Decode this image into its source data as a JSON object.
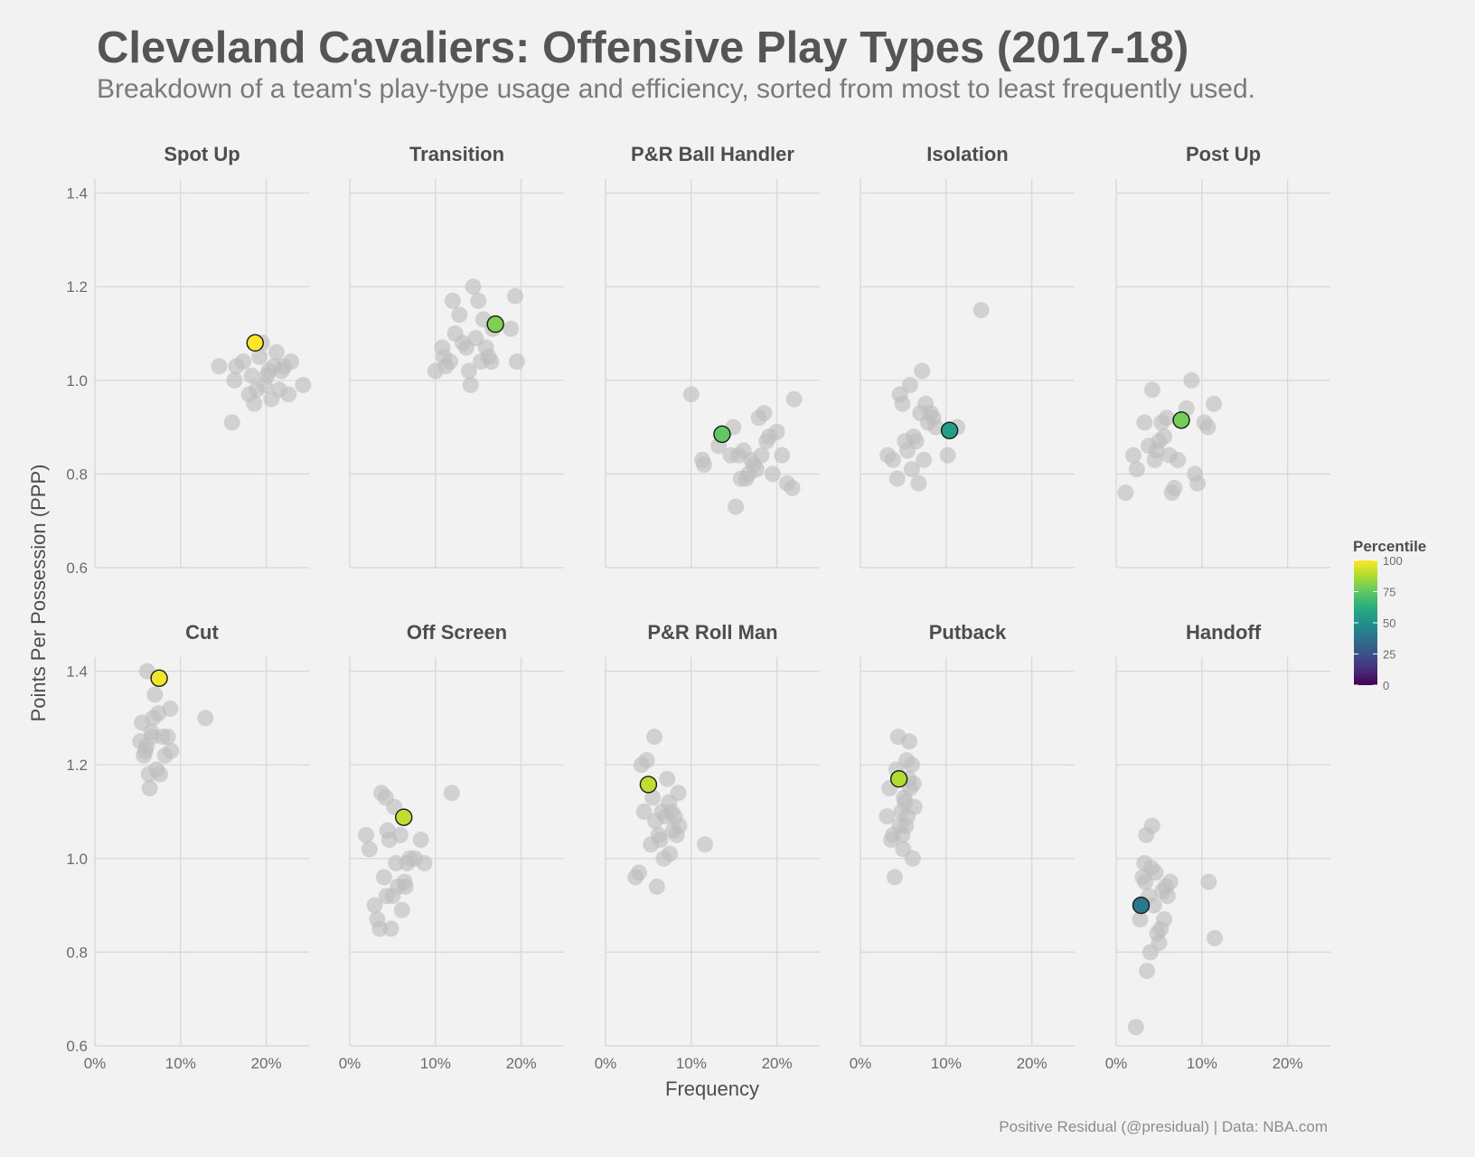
{
  "title": "Cleveland Cavaliers: Offensive Play Types (2017-18)",
  "subtitle": "Breakdown of a team's play-type usage and efficiency, sorted from most to least frequently used.",
  "caption": "Positive Residual (@presidual)  |  Data: NBA.com",
  "colors": {
    "background": "#f2f2f2",
    "grid": "#d9d9d9",
    "others": "#bdbdbd",
    "highlight_stroke": "#1a1a1a"
  },
  "chart_data": {
    "type": "scatter",
    "xlabel": "Frequency",
    "ylabel": "Points Per Possession (PPP)",
    "xlim": [
      0,
      25
    ],
    "ylim": [
      0.6,
      1.43
    ],
    "x_ticks": [
      0,
      10,
      20
    ],
    "x_tick_labels": [
      "0%",
      "10%",
      "20%"
    ],
    "y_ticks": [
      0.6,
      0.8,
      1.0,
      1.2,
      1.4
    ],
    "y_tick_labels": [
      "0.6",
      "0.8",
      "1.0",
      "1.2",
      "1.4"
    ],
    "legend": {
      "title": "Percentile",
      "position": "right",
      "ticks": [
        0,
        25,
        50,
        75,
        100
      ],
      "colormap": "viridis"
    },
    "panels": [
      {
        "name": "Spot Up",
        "team": {
          "x": 18.7,
          "y": 1.08,
          "percentile": 100
        },
        "others": [
          [
            14.5,
            1.03
          ],
          [
            16.0,
            0.91
          ],
          [
            16.3,
            1.0
          ],
          [
            16.5,
            1.03
          ],
          [
            17.3,
            1.04
          ],
          [
            18.0,
            0.97
          ],
          [
            18.3,
            1.01
          ],
          [
            18.6,
            0.95
          ],
          [
            18.9,
            0.98
          ],
          [
            19.2,
            1.05
          ],
          [
            19.5,
            1.08
          ],
          [
            19.8,
            0.99
          ],
          [
            20.1,
            1.01
          ],
          [
            20.3,
            1.02
          ],
          [
            20.6,
            0.96
          ],
          [
            20.9,
            1.03
          ],
          [
            21.2,
            1.06
          ],
          [
            21.5,
            0.98
          ],
          [
            21.8,
            1.02
          ],
          [
            22.1,
            1.03
          ],
          [
            22.6,
            0.97
          ],
          [
            22.9,
            1.04
          ],
          [
            24.3,
            0.99
          ]
        ]
      },
      {
        "name": "Transition",
        "team": {
          "x": 17.0,
          "y": 1.12,
          "percentile": 80
        },
        "others": [
          [
            10.0,
            1.02
          ],
          [
            10.8,
            1.07
          ],
          [
            11.0,
            1.05
          ],
          [
            11.2,
            1.03
          ],
          [
            11.7,
            1.04
          ],
          [
            12.0,
            1.17
          ],
          [
            12.3,
            1.1
          ],
          [
            12.8,
            1.14
          ],
          [
            13.2,
            1.08
          ],
          [
            13.6,
            1.07
          ],
          [
            13.9,
            1.02
          ],
          [
            14.1,
            0.99
          ],
          [
            14.4,
            1.2
          ],
          [
            14.7,
            1.09
          ],
          [
            15.0,
            1.17
          ],
          [
            15.3,
            1.04
          ],
          [
            15.6,
            1.13
          ],
          [
            15.9,
            1.07
          ],
          [
            16.2,
            1.05
          ],
          [
            16.5,
            1.04
          ],
          [
            16.7,
            1.11
          ],
          [
            18.8,
            1.11
          ],
          [
            19.3,
            1.18
          ],
          [
            19.5,
            1.04
          ]
        ]
      },
      {
        "name": "P&R Ball Handler",
        "team": {
          "x": 13.6,
          "y": 0.885,
          "percentile": 75
        },
        "others": [
          [
            10.0,
            0.97
          ],
          [
            11.3,
            0.83
          ],
          [
            11.5,
            0.82
          ],
          [
            13.2,
            0.86
          ],
          [
            14.6,
            0.84
          ],
          [
            14.9,
            0.9
          ],
          [
            15.2,
            0.73
          ],
          [
            15.5,
            0.84
          ],
          [
            15.8,
            0.79
          ],
          [
            16.1,
            0.85
          ],
          [
            16.4,
            0.79
          ],
          [
            16.7,
            0.8
          ],
          [
            17.0,
            0.83
          ],
          [
            17.3,
            0.82
          ],
          [
            17.6,
            0.81
          ],
          [
            17.9,
            0.92
          ],
          [
            18.2,
            0.84
          ],
          [
            18.5,
            0.93
          ],
          [
            18.8,
            0.87
          ],
          [
            19.1,
            0.88
          ],
          [
            19.5,
            0.8
          ],
          [
            20.0,
            0.89
          ],
          [
            20.6,
            0.84
          ],
          [
            21.2,
            0.78
          ],
          [
            21.8,
            0.77
          ],
          [
            22.0,
            0.96
          ]
        ]
      },
      {
        "name": "Isolation",
        "team": {
          "x": 10.4,
          "y": 0.893,
          "percentile": 55
        },
        "others": [
          [
            3.2,
            0.84
          ],
          [
            3.8,
            0.83
          ],
          [
            4.3,
            0.79
          ],
          [
            4.6,
            0.97
          ],
          [
            4.9,
            0.95
          ],
          [
            5.2,
            0.87
          ],
          [
            5.5,
            0.85
          ],
          [
            5.8,
            0.99
          ],
          [
            6.0,
            0.81
          ],
          [
            6.2,
            0.88
          ],
          [
            6.5,
            0.87
          ],
          [
            6.8,
            0.78
          ],
          [
            7.0,
            0.93
          ],
          [
            7.2,
            1.02
          ],
          [
            7.4,
            0.83
          ],
          [
            7.6,
            0.95
          ],
          [
            7.9,
            0.91
          ],
          [
            8.2,
            0.93
          ],
          [
            8.5,
            0.92
          ],
          [
            8.8,
            0.9
          ],
          [
            10.2,
            0.84
          ],
          [
            11.3,
            0.9
          ],
          [
            14.1,
            1.15
          ]
        ]
      },
      {
        "name": "Post Up",
        "team": {
          "x": 7.6,
          "y": 0.915,
          "percentile": 78
        },
        "others": [
          [
            1.1,
            0.76
          ],
          [
            2.0,
            0.84
          ],
          [
            2.4,
            0.81
          ],
          [
            3.3,
            0.91
          ],
          [
            3.8,
            0.86
          ],
          [
            4.2,
            0.98
          ],
          [
            4.5,
            0.83
          ],
          [
            4.7,
            0.85
          ],
          [
            5.0,
            0.87
          ],
          [
            5.3,
            0.91
          ],
          [
            5.6,
            0.88
          ],
          [
            5.9,
            0.92
          ],
          [
            6.2,
            0.84
          ],
          [
            6.5,
            0.76
          ],
          [
            6.8,
            0.77
          ],
          [
            7.2,
            0.83
          ],
          [
            8.2,
            0.94
          ],
          [
            8.8,
            1.0
          ],
          [
            9.2,
            0.8
          ],
          [
            9.5,
            0.78
          ],
          [
            10.3,
            0.91
          ],
          [
            10.7,
            0.9
          ],
          [
            11.4,
            0.95
          ]
        ]
      },
      {
        "name": "Cut",
        "team": {
          "x": 7.5,
          "y": 1.385,
          "percentile": 98
        },
        "others": [
          [
            5.3,
            1.25
          ],
          [
            5.5,
            1.29
          ],
          [
            5.7,
            1.22
          ],
          [
            5.9,
            1.23
          ],
          [
            6.1,
            1.4
          ],
          [
            6.3,
            1.18
          ],
          [
            6.4,
            1.15
          ],
          [
            6.6,
            1.27
          ],
          [
            6.8,
            1.3
          ],
          [
            7.0,
            1.35
          ],
          [
            7.2,
            1.19
          ],
          [
            7.4,
            1.31
          ],
          [
            7.6,
            1.18
          ],
          [
            7.9,
            1.26
          ],
          [
            8.2,
            1.22
          ],
          [
            8.5,
            1.26
          ],
          [
            8.8,
            1.32
          ],
          [
            8.9,
            1.23
          ],
          [
            12.9,
            1.3
          ],
          [
            6.0,
            1.24
          ],
          [
            6.7,
            1.26
          ]
        ]
      },
      {
        "name": "Off Screen",
        "team": {
          "x": 6.3,
          "y": 1.088,
          "percentile": 90
        },
        "others": [
          [
            1.9,
            1.05
          ],
          [
            2.3,
            1.02
          ],
          [
            2.9,
            0.9
          ],
          [
            3.2,
            0.87
          ],
          [
            3.5,
            0.85
          ],
          [
            3.7,
            1.14
          ],
          [
            4.0,
            0.96
          ],
          [
            4.2,
            1.13
          ],
          [
            4.4,
            1.06
          ],
          [
            4.6,
            1.04
          ],
          [
            4.8,
            0.85
          ],
          [
            5.0,
            0.92
          ],
          [
            5.2,
            1.11
          ],
          [
            5.4,
            0.99
          ],
          [
            5.6,
            0.94
          ],
          [
            5.9,
            1.05
          ],
          [
            6.1,
            0.89
          ],
          [
            6.4,
            0.95
          ],
          [
            6.7,
            0.99
          ],
          [
            7.0,
            1.0
          ],
          [
            7.6,
            1.0
          ],
          [
            8.3,
            1.04
          ],
          [
            8.7,
            0.99
          ],
          [
            11.9,
            1.14
          ],
          [
            4.3,
            0.92
          ],
          [
            6.5,
            0.94
          ]
        ]
      },
      {
        "name": "P&R Roll Man",
        "team": {
          "x": 5.0,
          "y": 1.158,
          "percentile": 90
        },
        "others": [
          [
            3.5,
            0.96
          ],
          [
            3.9,
            0.97
          ],
          [
            4.2,
            1.2
          ],
          [
            4.5,
            1.1
          ],
          [
            4.8,
            1.21
          ],
          [
            5.3,
            1.03
          ],
          [
            5.5,
            1.13
          ],
          [
            5.7,
            1.26
          ],
          [
            5.8,
            1.08
          ],
          [
            6.0,
            0.94
          ],
          [
            6.2,
            1.05
          ],
          [
            6.4,
            1.04
          ],
          [
            6.6,
            1.1
          ],
          [
            6.8,
            1.0
          ],
          [
            7.0,
            1.09
          ],
          [
            7.2,
            1.17
          ],
          [
            7.4,
            1.12
          ],
          [
            7.5,
            1.01
          ],
          [
            7.7,
            1.1
          ],
          [
            7.9,
            1.06
          ],
          [
            8.1,
            1.09
          ],
          [
            8.3,
            1.05
          ],
          [
            8.5,
            1.14
          ],
          [
            8.6,
            1.07
          ],
          [
            11.6,
            1.03
          ]
        ]
      },
      {
        "name": "Putback",
        "team": {
          "x": 4.5,
          "y": 1.17,
          "percentile": 88
        },
        "others": [
          [
            3.1,
            1.09
          ],
          [
            3.4,
            1.15
          ],
          [
            3.6,
            1.04
          ],
          [
            3.8,
            1.05
          ],
          [
            4.0,
            0.96
          ],
          [
            4.2,
            1.19
          ],
          [
            4.4,
            1.26
          ],
          [
            4.6,
            1.07
          ],
          [
            4.8,
            1.1
          ],
          [
            5.0,
            1.02
          ],
          [
            5.1,
            1.13
          ],
          [
            5.2,
            1.12
          ],
          [
            5.4,
            1.21
          ],
          [
            5.5,
            1.09
          ],
          [
            5.6,
            1.17
          ],
          [
            5.7,
            1.25
          ],
          [
            5.8,
            1.15
          ],
          [
            6.0,
            1.2
          ],
          [
            6.1,
            1.0
          ],
          [
            6.2,
            1.16
          ],
          [
            6.3,
            1.11
          ],
          [
            4.9,
            1.05
          ],
          [
            5.3,
            1.07
          ]
        ]
      },
      {
        "name": "Handoff",
        "team": {
          "x": 2.9,
          "y": 0.9,
          "percentile": 40
        },
        "others": [
          [
            2.3,
            0.64
          ],
          [
            2.8,
            0.87
          ],
          [
            3.1,
            0.96
          ],
          [
            3.3,
            0.99
          ],
          [
            3.5,
            1.05
          ],
          [
            3.6,
            0.76
          ],
          [
            3.8,
            0.92
          ],
          [
            4.0,
            0.8
          ],
          [
            4.2,
            1.07
          ],
          [
            4.4,
            0.9
          ],
          [
            4.6,
            0.97
          ],
          [
            4.8,
            0.84
          ],
          [
            5.0,
            0.82
          ],
          [
            5.2,
            0.85
          ],
          [
            5.4,
            0.93
          ],
          [
            5.6,
            0.87
          ],
          [
            5.8,
            0.94
          ],
          [
            6.0,
            0.92
          ],
          [
            6.3,
            0.95
          ],
          [
            10.8,
            0.95
          ],
          [
            11.5,
            0.83
          ],
          [
            3.4,
            0.95
          ],
          [
            4.1,
            0.98
          ]
        ]
      }
    ]
  }
}
